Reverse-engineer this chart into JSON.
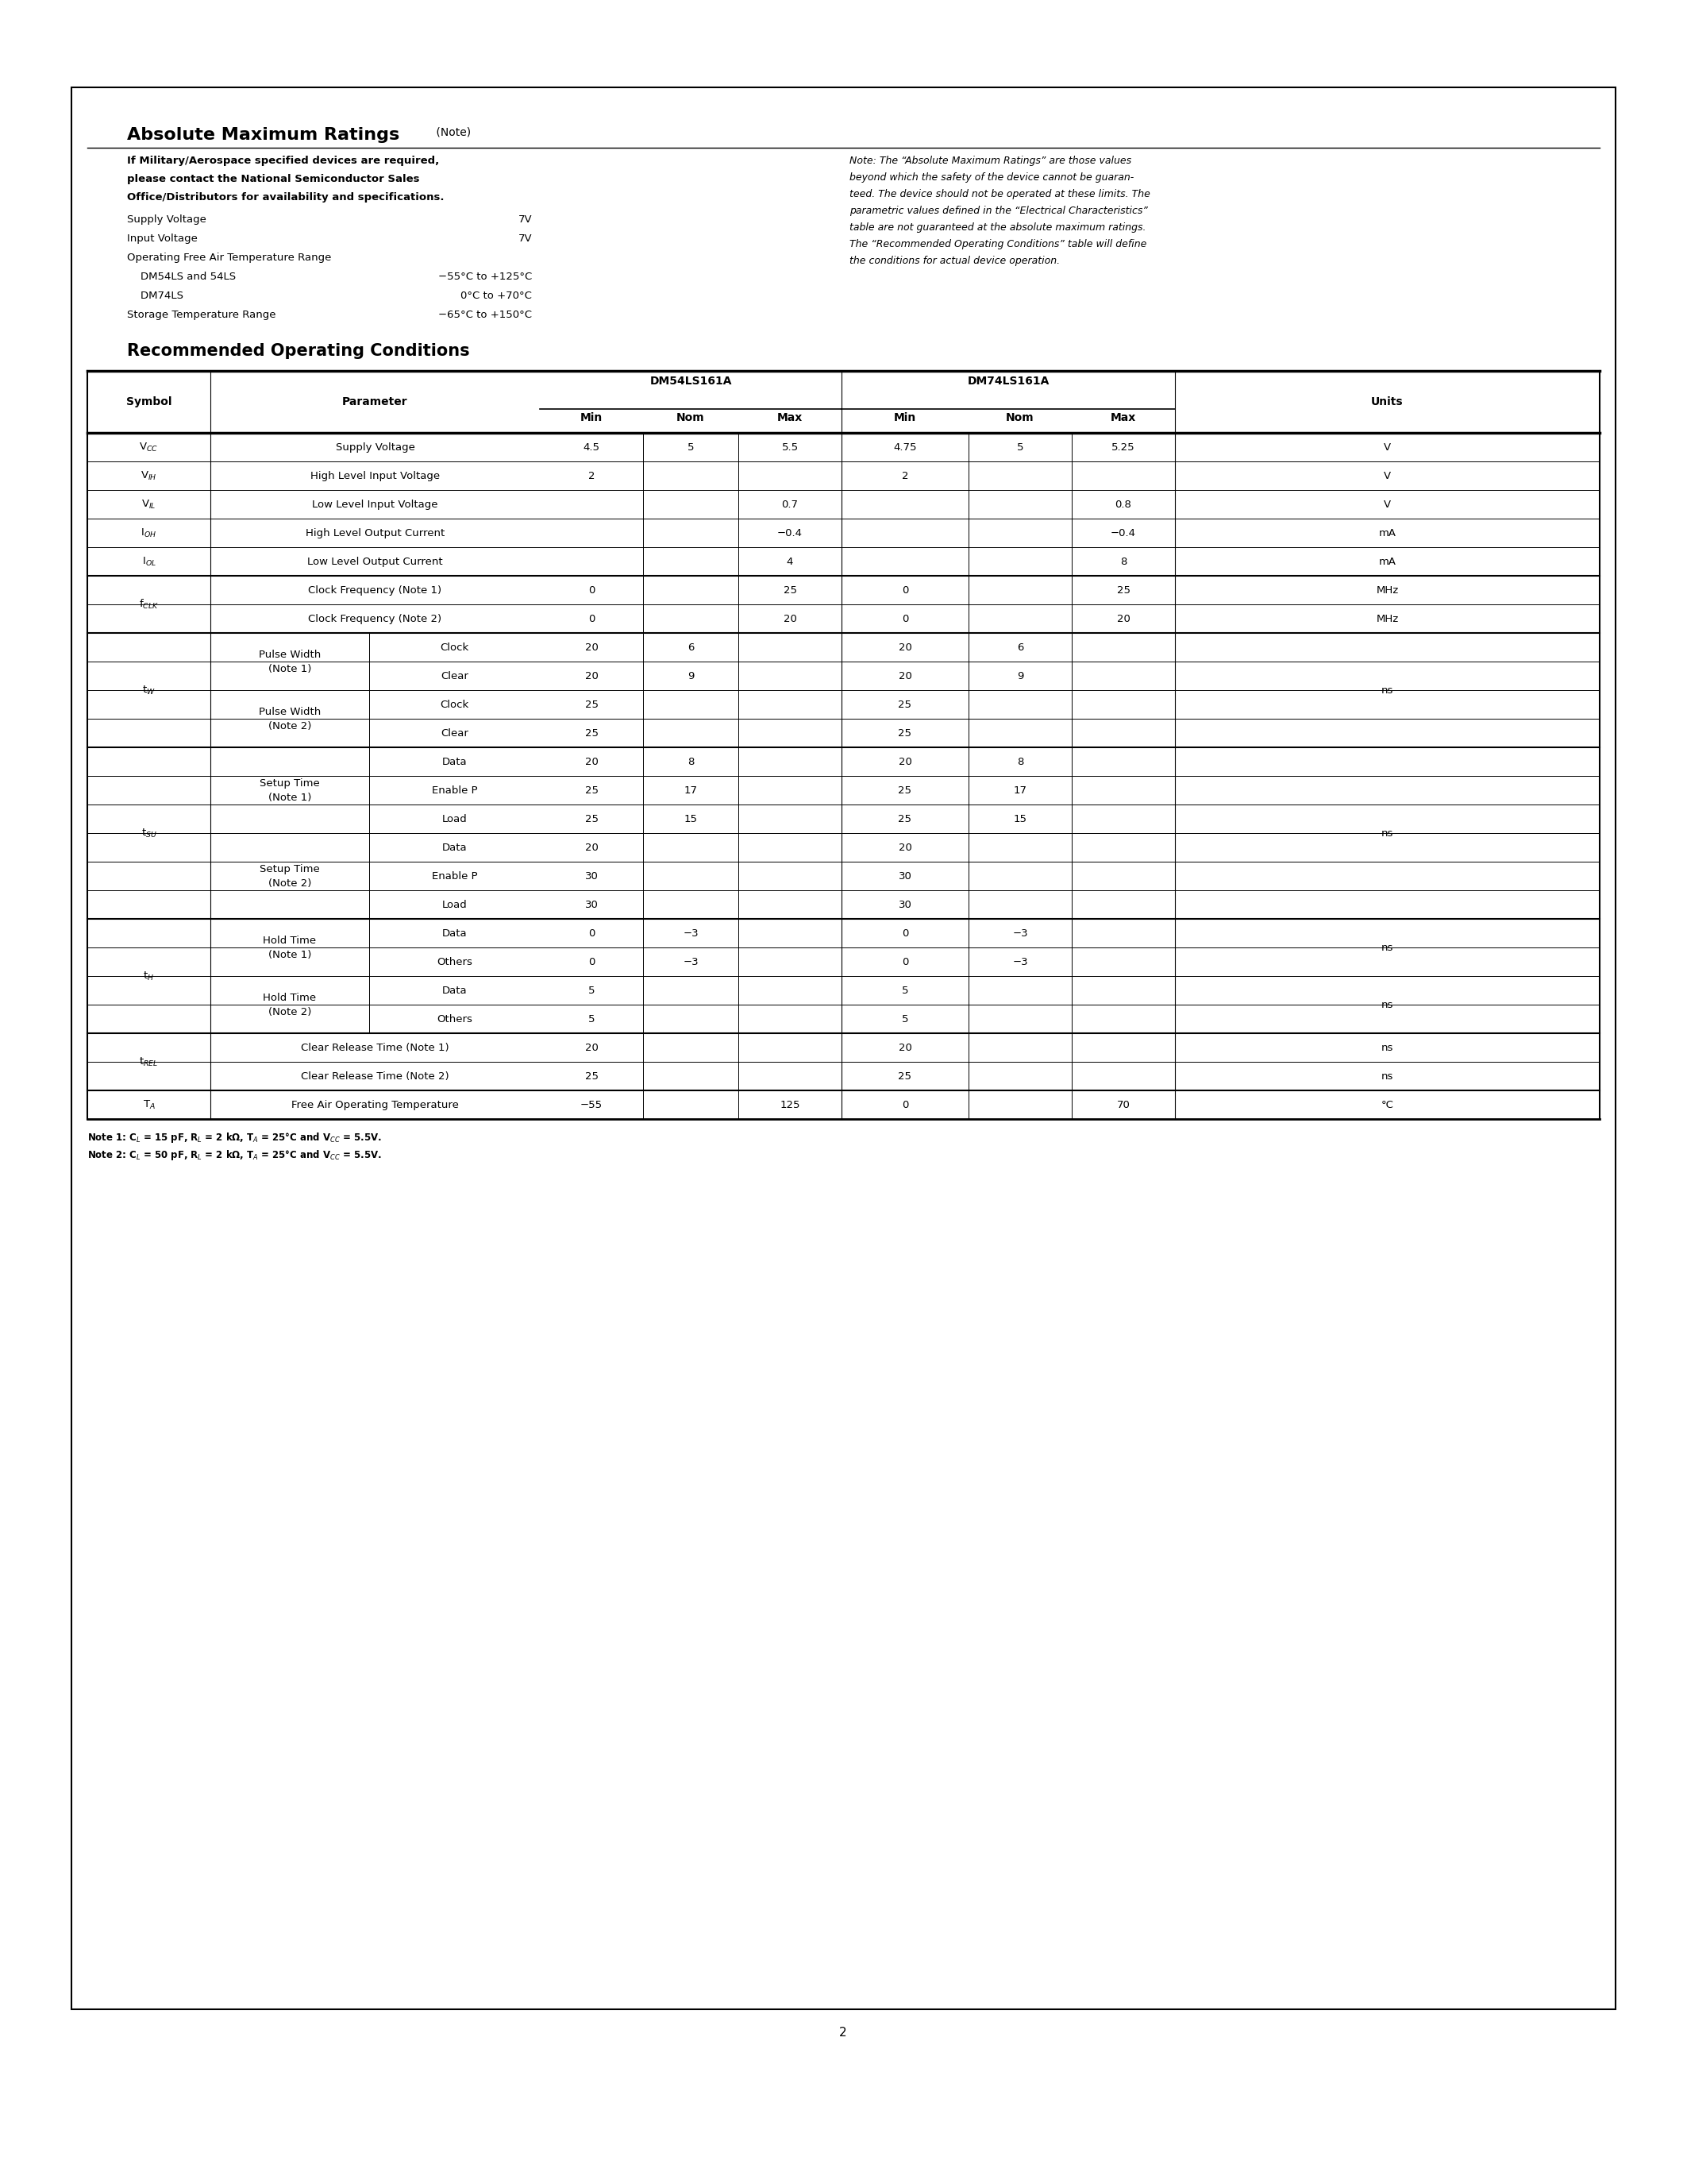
{
  "page_bg": "#ffffff",
  "border_color": "#000000",
  "page_number": "2",
  "abs_max_title": "Absolute Maximum Ratings",
  "abs_max_title_note": "(Note)",
  "abs_max_bold_lines": [
    "If Military/Aerospace specified devices are required,",
    "please contact the National Semiconductor Sales",
    "Office/Distributors for availability and specifications."
  ],
  "abs_max_items": [
    {
      "label": "Supply Voltage",
      "value": "7V"
    },
    {
      "label": "Input Voltage",
      "value": "7V"
    },
    {
      "label": "Operating Free Air Temperature Range",
      "value": ""
    },
    {
      "label": "    DM54LS and 54LS",
      "value": "−55°C to +125°C"
    },
    {
      "label": "    DM74LS",
      "value": "0°C to +70°C"
    },
    {
      "label": "Storage Temperature Range",
      "value": "−65°C to +150°C"
    }
  ],
  "abs_max_note_lines": [
    "Note: The “Absolute Maximum Ratings” are those values",
    "beyond which the safety of the device cannot be guaran-",
    "teed. The device should not be operated at these limits. The",
    "parametric values defined in the “Electrical Characteristics”",
    "table are not guaranteed at the absolute maximum ratings.",
    "The “Recommended Operating Conditions” table will define",
    "the conditions for actual device operation."
  ],
  "rec_op_title": "Recommended Operating Conditions",
  "table_header_dm54": "DM54LS161A",
  "table_header_dm74": "DM74LS161A",
  "table_header_units": "Units",
  "table_subheader": [
    "Min",
    "Nom",
    "Max",
    "Min",
    "Nom",
    "Max"
  ],
  "symbols": [
    "V$_{CC}$",
    "V$_{IH}$",
    "V$_{IL}$",
    "I$_{OH}$",
    "I$_{OL}$",
    "f$_{CLK}$",
    "",
    "t$_{W}$",
    "",
    "",
    "",
    "t$_{SU}$",
    "",
    "",
    "",
    "",
    "",
    "t$_{H}$",
    "",
    "",
    "",
    "t$_{REL}$",
    "",
    "T$_{A}$"
  ],
  "symbol_spans": [
    1,
    1,
    1,
    1,
    1,
    2,
    0,
    4,
    0,
    0,
    0,
    6,
    0,
    0,
    0,
    0,
    0,
    4,
    0,
    0,
    0,
    2,
    0,
    1
  ],
  "param1": [
    "",
    "",
    "",
    "",
    "",
    "",
    "",
    "Pulse Width\n(Note 1)",
    "",
    "Pulse Width\n(Note 2)",
    "",
    "Setup Time\n(Note 1)",
    "",
    "",
    "Setup Time\n(Note 2)",
    "",
    "",
    "Hold Time\n(Note 1)",
    "",
    "Hold Time\n(Note 2)",
    "",
    "",
    "",
    ""
  ],
  "param1_spans": [
    0,
    0,
    0,
    0,
    0,
    0,
    0,
    2,
    0,
    2,
    0,
    3,
    0,
    0,
    3,
    0,
    0,
    2,
    0,
    2,
    0,
    0,
    0,
    0
  ],
  "param2": [
    "Supply Voltage",
    "High Level Input Voltage",
    "Low Level Input Voltage",
    "High Level Output Current",
    "Low Level Output Current",
    "Clock Frequency (Note 1)",
    "Clock Frequency (Note 2)",
    "Clock",
    "Clear",
    "Clock",
    "Clear",
    "Data",
    "Enable P",
    "Load",
    "Data",
    "Enable P",
    "Load",
    "Data",
    "Others",
    "Data",
    "Others",
    "Clear Release Time (Note 1)",
    "Clear Release Time (Note 2)",
    "Free Air Operating Temperature"
  ],
  "dm54_min": [
    "4.5",
    "2",
    "",
    "",
    "",
    "0",
    "0",
    "20",
    "20",
    "25",
    "25",
    "20",
    "25",
    "25",
    "20",
    "30",
    "30",
    "0",
    "0",
    "5",
    "5",
    "20",
    "25",
    "−55"
  ],
  "dm54_nom": [
    "5",
    "",
    "",
    "",
    "",
    "",
    "",
    "6",
    "9",
    "",
    "",
    "8",
    "17",
    "15",
    "",
    "",
    "",
    "−3",
    "−3",
    "",
    "",
    "",
    "",
    ""
  ],
  "dm54_max": [
    "5.5",
    "",
    "0.7",
    "−0.4",
    "4",
    "25",
    "20",
    "",
    "",
    "",
    "",
    "",
    "",
    "",
    "",
    "",
    "",
    "",
    "",
    "",
    "",
    "",
    "",
    "125"
  ],
  "dm74_min": [
    "4.75",
    "2",
    "",
    "",
    "",
    "0",
    "0",
    "20",
    "20",
    "25",
    "25",
    "20",
    "25",
    "25",
    "20",
    "30",
    "30",
    "0",
    "0",
    "5",
    "5",
    "20",
    "25",
    "0"
  ],
  "dm74_nom": [
    "5",
    "",
    "",
    "",
    "",
    "",
    "",
    "6",
    "9",
    "",
    "",
    "8",
    "17",
    "15",
    "",
    "",
    "",
    "−3",
    "−3",
    "",
    "",
    "",
    "",
    ""
  ],
  "dm74_max": [
    "5.25",
    "",
    "0.8",
    "−0.4",
    "8",
    "25",
    "20",
    "",
    "",
    "",
    "",
    "",
    "",
    "",
    "",
    "",
    "",
    "",
    "",
    "",
    "",
    "",
    "",
    "70"
  ],
  "units": [
    "V",
    "V",
    "V",
    "mA",
    "mA",
    "MHz",
    "MHz",
    "ns",
    "",
    "",
    "",
    "ns",
    "",
    "",
    "ns",
    "",
    "",
    "ns",
    "",
    "ns",
    "",
    "ns",
    "ns",
    "°C"
  ],
  "units_spans": [
    1,
    1,
    1,
    1,
    1,
    1,
    1,
    4,
    0,
    0,
    0,
    6,
    0,
    0,
    0,
    0,
    0,
    2,
    0,
    2,
    0,
    1,
    1,
    1
  ],
  "note1": "Note 1: C$_L$ = 15 pF, R$_L$ = 2 kΩ, T$_A$ = 25°C and V$_{CC}$ = 5.5V.",
  "note2": "Note 2: C$_L$ = 50 pF, R$_L$ = 2 kΩ, T$_A$ = 25°C and V$_{CC}$ = 5.5V."
}
